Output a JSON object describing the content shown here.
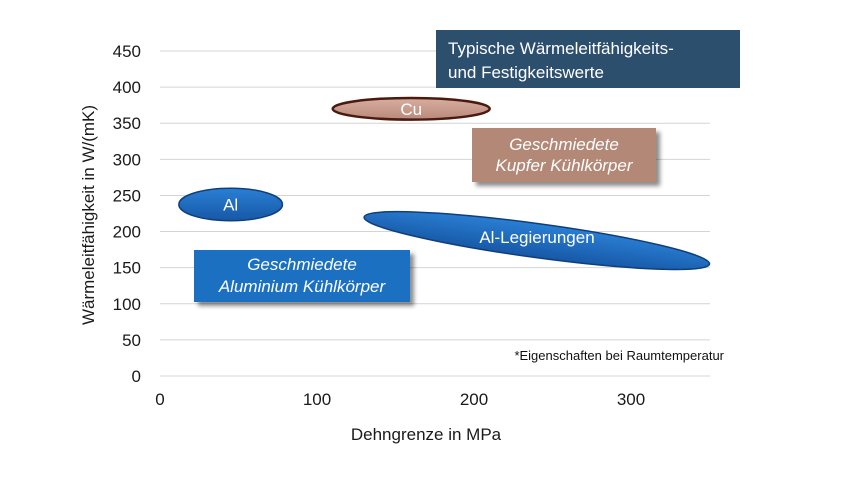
{
  "chart_data": {
    "type": "scatter",
    "xlabel": "Dehngrenze in MPa",
    "ylabel": "Wärmeleitfähigkeit in  W/(mK)",
    "xlim": [
      0,
      350
    ],
    "ylim": [
      0,
      450
    ],
    "x_ticks": [
      "0",
      "100",
      "200",
      "300"
    ],
    "y_ticks": [
      "0",
      "50",
      "100",
      "150",
      "200",
      "250",
      "300",
      "350",
      "400",
      "450"
    ],
    "grid": "horizontal",
    "regions": [
      {
        "label": "Cu",
        "x": [
          110,
          210
        ],
        "y": [
          355,
          385
        ],
        "color": "#c9998a"
      },
      {
        "label": "Al",
        "x": [
          12,
          78
        ],
        "y": [
          215,
          260
        ],
        "color": "#1f6fc2"
      },
      {
        "label": "Al-Legierungen",
        "x": [
          130,
          350
        ],
        "y": [
          155,
          220
        ],
        "color": "#1f6fc2"
      }
    ],
    "title_box": {
      "line1": "Typische Wärmeleitfähigkeits-",
      "line2": "und Festigkeitswerte",
      "color": "#2d4f6e"
    },
    "annotations": [
      {
        "line1": "Geschmiedete",
        "line2": "Kupfer Kühlkörper",
        "color": "#b38877"
      },
      {
        "line1": "Geschmiedete",
        "line2": "Aluminium Kühlkörper",
        "color": "#1f6fc2"
      }
    ],
    "note": "*Eigenschaften bei Raumtemperatur"
  }
}
